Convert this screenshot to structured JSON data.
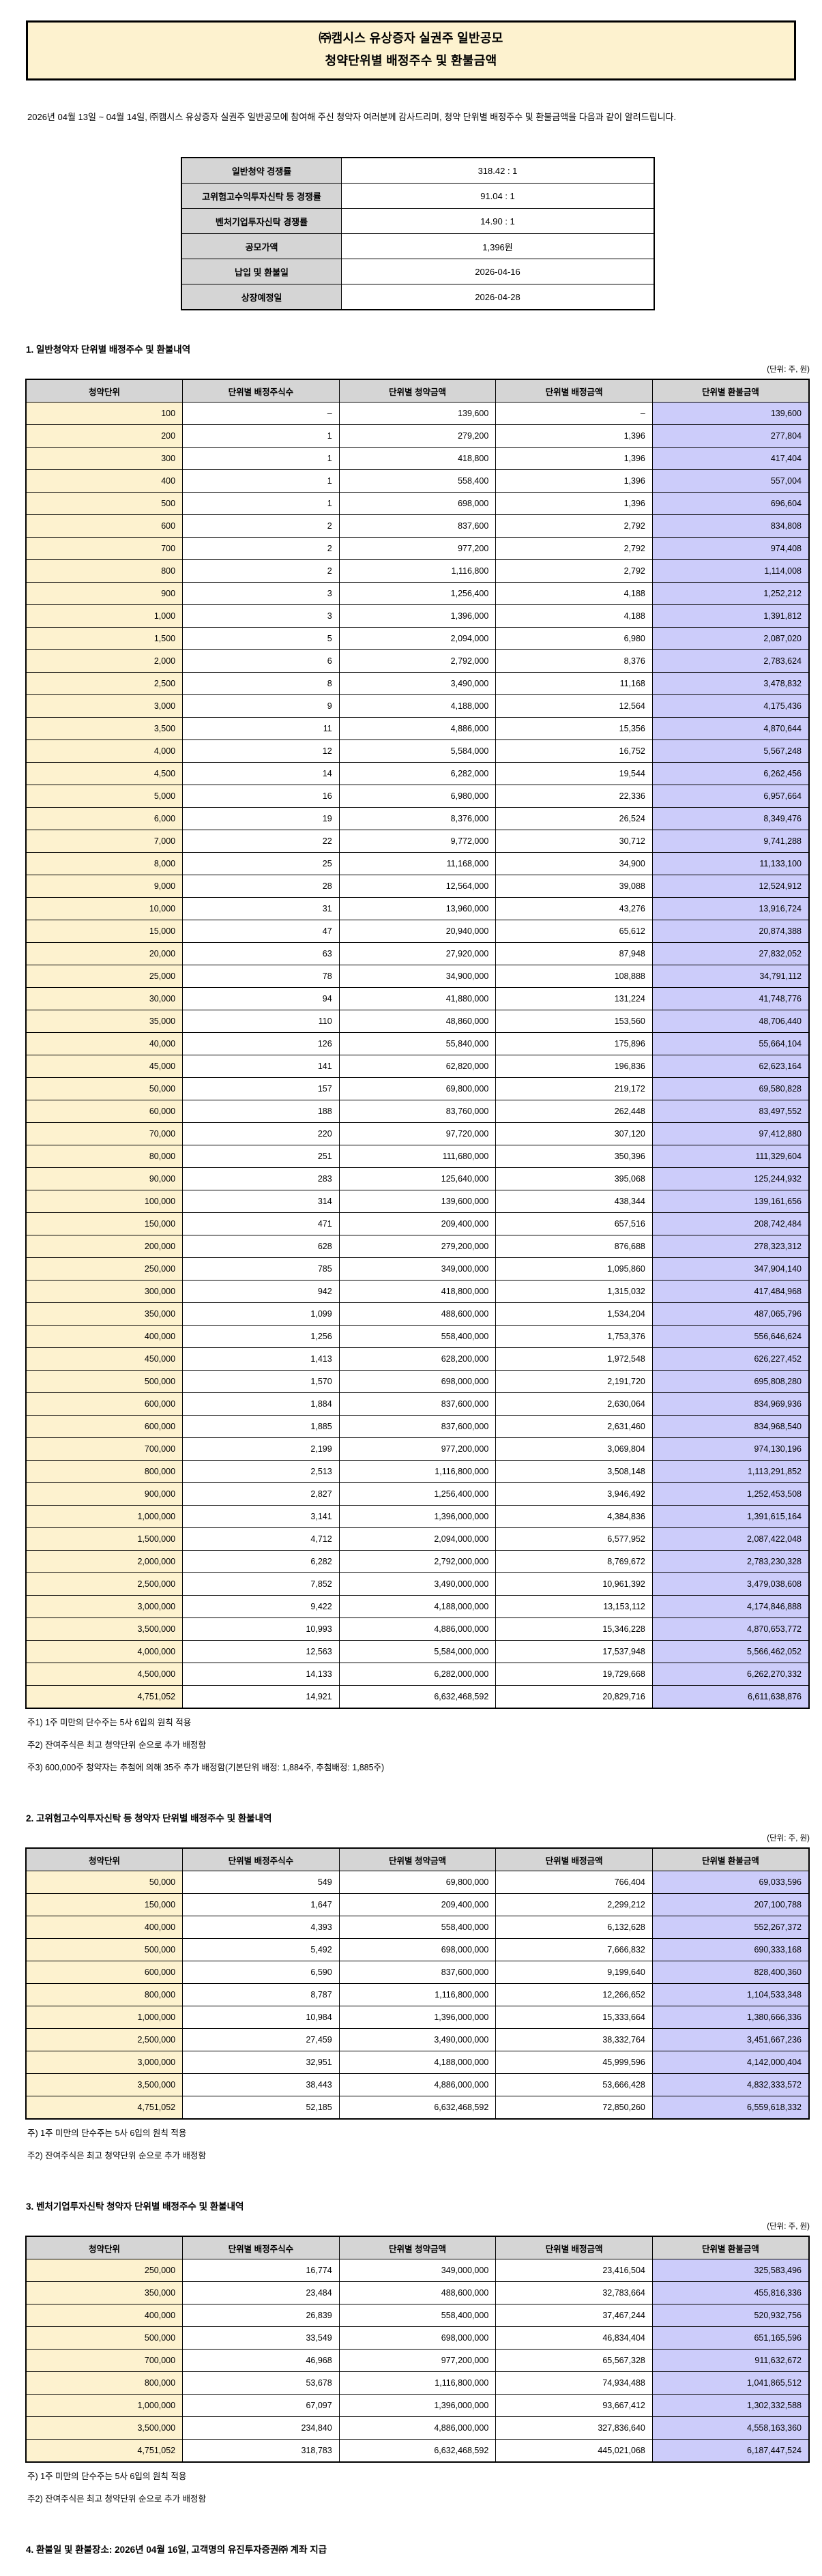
{
  "page": {
    "title_line1": "㈜캠시스 유상증자 실권주 일반공모",
    "title_line2": "청약단위별 배정주수 및 환불금액",
    "intro": "2026년 04월 13일 ~ 04월 14일, ㈜캠시스 유상증자 실권주 일반공모에 참여해 주신 청약자 여러분께 감사드리며, 청약 단위별 배정주수 및 환불금액을 다음과 같이 알려드립니다.",
    "unit_note": "(단위: 주, 원)"
  },
  "colors": {
    "title_box_bg": "#FDF2CF",
    "header_gray": "#D5D5D5",
    "unit_column_bg": "#FDF2CF",
    "refund_column_bg": "#CCCCFA",
    "border": "#000000"
  },
  "info_table": {
    "rows": [
      {
        "label": "일반청약 경쟁률",
        "value": "318.42 : 1"
      },
      {
        "label": "고위험고수익투자신탁 등 경쟁률",
        "value": "91.04 : 1"
      },
      {
        "label": "벤처기업투자신탁 경쟁률",
        "value": "14.90 : 1"
      },
      {
        "label": "공모가액",
        "value": "1,396원"
      },
      {
        "label": "납입 및 환불일",
        "value": "2026-04-16"
      },
      {
        "label": "상장예정일",
        "value": "2026-04-28"
      }
    ]
  },
  "columns": [
    "청약단위",
    "단위별 배정주식수",
    "단위별 청약금액",
    "단위별 배정금액",
    "단위별 환불금액"
  ],
  "sections": [
    {
      "title": "1. 일반청약자 단위별 배정주수 및 환불내역",
      "rows": [
        [
          "100",
          "–",
          "139,600",
          "–",
          "139,600"
        ],
        [
          "200",
          "1",
          "279,200",
          "1,396",
          "277,804"
        ],
        [
          "300",
          "1",
          "418,800",
          "1,396",
          "417,404"
        ],
        [
          "400",
          "1",
          "558,400",
          "1,396",
          "557,004"
        ],
        [
          "500",
          "1",
          "698,000",
          "1,396",
          "696,604"
        ],
        [
          "600",
          "2",
          "837,600",
          "2,792",
          "834,808"
        ],
        [
          "700",
          "2",
          "977,200",
          "2,792",
          "974,408"
        ],
        [
          "800",
          "2",
          "1,116,800",
          "2,792",
          "1,114,008"
        ],
        [
          "900",
          "3",
          "1,256,400",
          "4,188",
          "1,252,212"
        ],
        [
          "1,000",
          "3",
          "1,396,000",
          "4,188",
          "1,391,812"
        ],
        [
          "1,500",
          "5",
          "2,094,000",
          "6,980",
          "2,087,020"
        ],
        [
          "2,000",
          "6",
          "2,792,000",
          "8,376",
          "2,783,624"
        ],
        [
          "2,500",
          "8",
          "3,490,000",
          "11,168",
          "3,478,832"
        ],
        [
          "3,000",
          "9",
          "4,188,000",
          "12,564",
          "4,175,436"
        ],
        [
          "3,500",
          "11",
          "4,886,000",
          "15,356",
          "4,870,644"
        ],
        [
          "4,000",
          "12",
          "5,584,000",
          "16,752",
          "5,567,248"
        ],
        [
          "4,500",
          "14",
          "6,282,000",
          "19,544",
          "6,262,456"
        ],
        [
          "5,000",
          "16",
          "6,980,000",
          "22,336",
          "6,957,664"
        ],
        [
          "6,000",
          "19",
          "8,376,000",
          "26,524",
          "8,349,476"
        ],
        [
          "7,000",
          "22",
          "9,772,000",
          "30,712",
          "9,741,288"
        ],
        [
          "8,000",
          "25",
          "11,168,000",
          "34,900",
          "11,133,100"
        ],
        [
          "9,000",
          "28",
          "12,564,000",
          "39,088",
          "12,524,912"
        ],
        [
          "10,000",
          "31",
          "13,960,000",
          "43,276",
          "13,916,724"
        ],
        [
          "15,000",
          "47",
          "20,940,000",
          "65,612",
          "20,874,388"
        ],
        [
          "20,000",
          "63",
          "27,920,000",
          "87,948",
          "27,832,052"
        ],
        [
          "25,000",
          "78",
          "34,900,000",
          "108,888",
          "34,791,112"
        ],
        [
          "30,000",
          "94",
          "41,880,000",
          "131,224",
          "41,748,776"
        ],
        [
          "35,000",
          "110",
          "48,860,000",
          "153,560",
          "48,706,440"
        ],
        [
          "40,000",
          "126",
          "55,840,000",
          "175,896",
          "55,664,104"
        ],
        [
          "45,000",
          "141",
          "62,820,000",
          "196,836",
          "62,623,164"
        ],
        [
          "50,000",
          "157",
          "69,800,000",
          "219,172",
          "69,580,828"
        ],
        [
          "60,000",
          "188",
          "83,760,000",
          "262,448",
          "83,497,552"
        ],
        [
          "70,000",
          "220",
          "97,720,000",
          "307,120",
          "97,412,880"
        ],
        [
          "80,000",
          "251",
          "111,680,000",
          "350,396",
          "111,329,604"
        ],
        [
          "90,000",
          "283",
          "125,640,000",
          "395,068",
          "125,244,932"
        ],
        [
          "100,000",
          "314",
          "139,600,000",
          "438,344",
          "139,161,656"
        ],
        [
          "150,000",
          "471",
          "209,400,000",
          "657,516",
          "208,742,484"
        ],
        [
          "200,000",
          "628",
          "279,200,000",
          "876,688",
          "278,323,312"
        ],
        [
          "250,000",
          "785",
          "349,000,000",
          "1,095,860",
          "347,904,140"
        ],
        [
          "300,000",
          "942",
          "418,800,000",
          "1,315,032",
          "417,484,968"
        ],
        [
          "350,000",
          "1,099",
          "488,600,000",
          "1,534,204",
          "487,065,796"
        ],
        [
          "400,000",
          "1,256",
          "558,400,000",
          "1,753,376",
          "556,646,624"
        ],
        [
          "450,000",
          "1,413",
          "628,200,000",
          "1,972,548",
          "626,227,452"
        ],
        [
          "500,000",
          "1,570",
          "698,000,000",
          "2,191,720",
          "695,808,280"
        ],
        [
          "600,000",
          "1,884",
          "837,600,000",
          "2,630,064",
          "834,969,936"
        ],
        [
          "600,000",
          "1,885",
          "837,600,000",
          "2,631,460",
          "834,968,540"
        ],
        [
          "700,000",
          "2,199",
          "977,200,000",
          "3,069,804",
          "974,130,196"
        ],
        [
          "800,000",
          "2,513",
          "1,116,800,000",
          "3,508,148",
          "1,113,291,852"
        ],
        [
          "900,000",
          "2,827",
          "1,256,400,000",
          "3,946,492",
          "1,252,453,508"
        ],
        [
          "1,000,000",
          "3,141",
          "1,396,000,000",
          "4,384,836",
          "1,391,615,164"
        ],
        [
          "1,500,000",
          "4,712",
          "2,094,000,000",
          "6,577,952",
          "2,087,422,048"
        ],
        [
          "2,000,000",
          "6,282",
          "2,792,000,000",
          "8,769,672",
          "2,783,230,328"
        ],
        [
          "2,500,000",
          "7,852",
          "3,490,000,000",
          "10,961,392",
          "3,479,038,608"
        ],
        [
          "3,000,000",
          "9,422",
          "4,188,000,000",
          "13,153,112",
          "4,174,846,888"
        ],
        [
          "3,500,000",
          "10,993",
          "4,886,000,000",
          "15,346,228",
          "4,870,653,772"
        ],
        [
          "4,000,000",
          "12,563",
          "5,584,000,000",
          "17,537,948",
          "5,566,462,052"
        ],
        [
          "4,500,000",
          "14,133",
          "6,282,000,000",
          "19,729,668",
          "6,262,270,332"
        ],
        [
          "4,751,052",
          "14,921",
          "6,632,468,592",
          "20,829,716",
          "6,611,638,876"
        ]
      ],
      "notes": [
        "주1) 1주 미만의 단수주는 5사 6입의 원칙 적용",
        "주2) 잔여주식은 최고 청약단위 순으로 추가 배정함",
        "주3) 600,000주 청약자는 추첨에 의해 35주 추가 배정함(기본단위 배정: 1,884주, 추첨배정: 1,885주)"
      ]
    },
    {
      "title": "2. 고위험고수익투자신탁 등 청약자 단위별 배정주수 및 환불내역",
      "rows": [
        [
          "50,000",
          "549",
          "69,800,000",
          "766,404",
          "69,033,596"
        ],
        [
          "150,000",
          "1,647",
          "209,400,000",
          "2,299,212",
          "207,100,788"
        ],
        [
          "400,000",
          "4,393",
          "558,400,000",
          "6,132,628",
          "552,267,372"
        ],
        [
          "500,000",
          "5,492",
          "698,000,000",
          "7,666,832",
          "690,333,168"
        ],
        [
          "600,000",
          "6,590",
          "837,600,000",
          "9,199,640",
          "828,400,360"
        ],
        [
          "800,000",
          "8,787",
          "1,116,800,000",
          "12,266,652",
          "1,104,533,348"
        ],
        [
          "1,000,000",
          "10,984",
          "1,396,000,000",
          "15,333,664",
          "1,380,666,336"
        ],
        [
          "2,500,000",
          "27,459",
          "3,490,000,000",
          "38,332,764",
          "3,451,667,236"
        ],
        [
          "3,000,000",
          "32,951",
          "4,188,000,000",
          "45,999,596",
          "4,142,000,404"
        ],
        [
          "3,500,000",
          "38,443",
          "4,886,000,000",
          "53,666,428",
          "4,832,333,572"
        ],
        [
          "4,751,052",
          "52,185",
          "6,632,468,592",
          "72,850,260",
          "6,559,618,332"
        ]
      ],
      "notes": [
        "주) 1주 미만의 단수주는 5사 6입의 원칙 적용",
        "주2) 잔여주식은 최고 청약단위 순으로 추가 배정함"
      ]
    },
    {
      "title": "3. 벤처기업투자신탁 청약자 단위별 배정주수 및 환불내역",
      "rows": [
        [
          "250,000",
          "16,774",
          "349,000,000",
          "23,416,504",
          "325,583,496"
        ],
        [
          "350,000",
          "23,484",
          "488,600,000",
          "32,783,664",
          "455,816,336"
        ],
        [
          "400,000",
          "26,839",
          "558,400,000",
          "37,467,244",
          "520,932,756"
        ],
        [
          "500,000",
          "33,549",
          "698,000,000",
          "46,834,404",
          "651,165,596"
        ],
        [
          "700,000",
          "46,968",
          "977,200,000",
          "65,567,328",
          "911,632,672"
        ],
        [
          "800,000",
          "53,678",
          "1,116,800,000",
          "74,934,488",
          "1,041,865,512"
        ],
        [
          "1,000,000",
          "67,097",
          "1,396,000,000",
          "93,667,412",
          "1,302,332,588"
        ],
        [
          "3,500,000",
          "234,840",
          "4,886,000,000",
          "327,836,640",
          "4,558,163,360"
        ],
        [
          "4,751,052",
          "318,783",
          "6,632,468,592",
          "445,021,068",
          "6,187,447,524"
        ]
      ],
      "notes": [
        "주) 1주 미만의 단수주는 5사 6입의 원칙 적용",
        "주2) 잔여주식은 최고 청약단위 순으로 추가 배정함"
      ]
    }
  ],
  "footer": {
    "refund_notice": "4. 환불일 및 환불장소: 2026년 04월 16일, 고객명의 유진투자증권㈜ 계좌 지급"
  }
}
